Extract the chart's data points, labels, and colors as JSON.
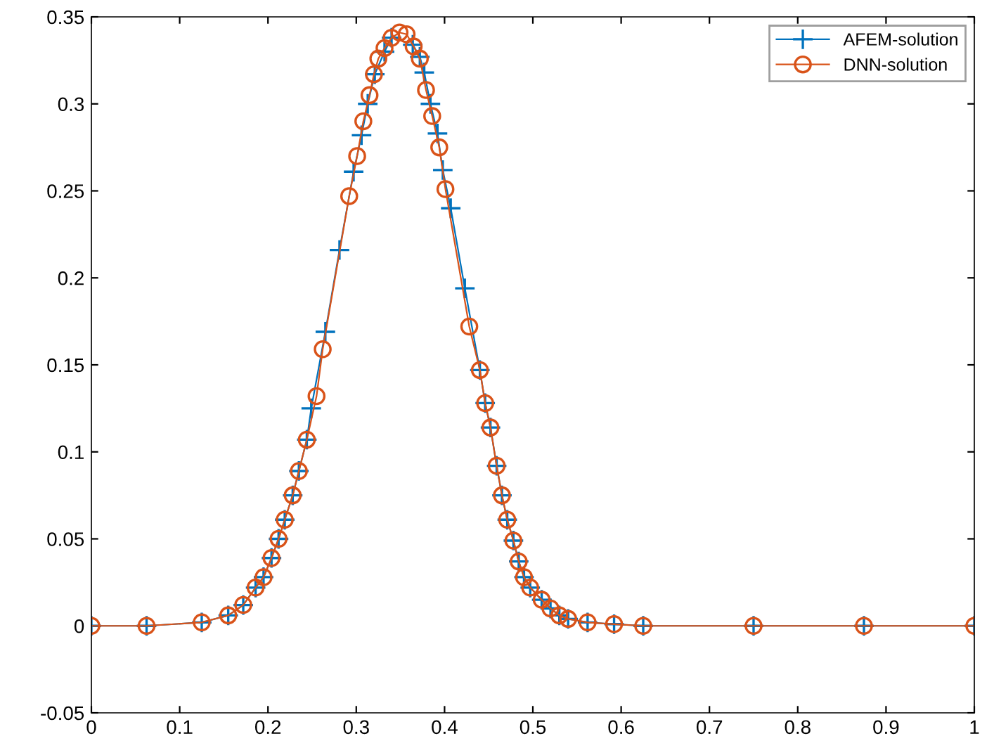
{
  "chart_data": {
    "type": "line",
    "xlim": [
      0,
      1
    ],
    "ylim": [
      -0.05,
      0.35
    ],
    "xticks": [
      0,
      0.1,
      0.2,
      0.3,
      0.4,
      0.5,
      0.6,
      0.7,
      0.8,
      0.9,
      1
    ],
    "yticks": [
      -0.05,
      0,
      0.05,
      0.1,
      0.15,
      0.2,
      0.25,
      0.3,
      0.35
    ],
    "grid": false,
    "legend": "top right",
    "series": [
      {
        "name": "AFEM-solution",
        "color": "#0072bd",
        "marker": "cross",
        "x": [
          0,
          0.0625,
          0.125,
          0.155,
          0.172,
          0.186,
          0.195,
          0.204,
          0.212,
          0.219,
          0.228,
          0.235,
          0.244,
          0.249,
          0.265,
          0.281,
          0.297,
          0.306,
          0.313,
          0.321,
          0.332,
          0.34,
          0.348,
          0.356,
          0.364,
          0.372,
          0.377,
          0.384,
          0.392,
          0.398,
          0.407,
          0.423,
          0.44,
          0.446,
          0.452,
          0.459,
          0.465,
          0.471,
          0.478,
          0.484,
          0.49,
          0.497,
          0.51,
          0.52,
          0.53,
          0.54,
          0.562,
          0.592,
          0.625,
          0.75,
          0.875,
          1
        ],
        "values": [
          0,
          0,
          0.002,
          0.006,
          0.012,
          0.022,
          0.028,
          0.039,
          0.05,
          0.061,
          0.075,
          0.089,
          0.107,
          0.125,
          0.169,
          0.216,
          0.261,
          0.282,
          0.3,
          0.317,
          0.33,
          0.338,
          null,
          null,
          0.334,
          0.327,
          0.318,
          0.3,
          0.283,
          0.262,
          0.24,
          0.194,
          0.147,
          0.128,
          0.114,
          0.092,
          0.075,
          0.061,
          0.049,
          0.037,
          0.028,
          0.022,
          0.015,
          0.01,
          0.006,
          0.004,
          0.002,
          0.001,
          0,
          0,
          0,
          0
        ]
      },
      {
        "name": "DNN-solution",
        "color": "#d95319",
        "marker": "circle",
        "x": [
          0,
          0.0625,
          0.125,
          0.155,
          0.172,
          0.186,
          0.195,
          0.204,
          0.212,
          0.219,
          0.228,
          0.235,
          0.244,
          0.255,
          0.262,
          0.292,
          0.301,
          0.308,
          0.315,
          0.32,
          0.325,
          0.332,
          0.34,
          0.349,
          0.357,
          0.365,
          0.372,
          0.379,
          0.386,
          0.394,
          0.401,
          0.428,
          0.44,
          0.446,
          0.452,
          0.459,
          0.465,
          0.471,
          0.478,
          0.484,
          0.49,
          0.497,
          0.51,
          0.52,
          0.53,
          0.54,
          0.562,
          0.592,
          0.625,
          0.75,
          0.875,
          1
        ],
        "values": [
          0,
          0,
          0.002,
          0.006,
          0.012,
          0.022,
          0.028,
          0.039,
          0.05,
          0.061,
          0.075,
          0.089,
          0.107,
          0.132,
          0.159,
          0.247,
          0.27,
          0.29,
          0.305,
          0.317,
          0.326,
          0.332,
          0.338,
          0.341,
          0.34,
          0.333,
          0.326,
          0.308,
          0.293,
          0.275,
          0.251,
          0.172,
          0.147,
          0.128,
          0.114,
          0.092,
          0.075,
          0.061,
          0.049,
          0.037,
          0.028,
          0.022,
          0.015,
          0.01,
          0.006,
          0.004,
          0.002,
          0.001,
          0,
          0,
          0,
          0
        ]
      }
    ]
  }
}
